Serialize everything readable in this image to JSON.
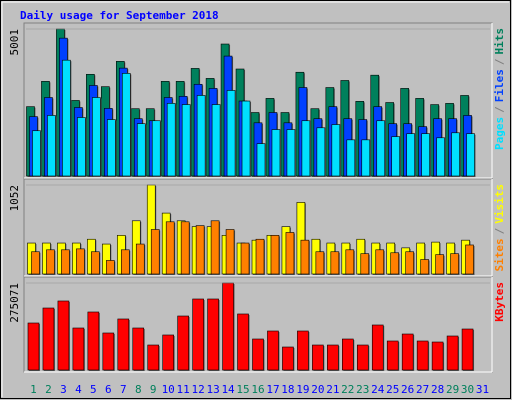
{
  "chart_data": [
    {
      "type": "bar",
      "title": "Daily usage for September 2018",
      "legend_separator": "/",
      "ylim": [
        0,
        5001
      ],
      "yticks": [
        5001
      ],
      "series": [
        {
          "name": "Hits",
          "color": "#00805c",
          "values": [
            2360,
            3220,
            5001,
            2570,
            3460,
            3040,
            3900,
            2290,
            2290,
            3220,
            3220,
            3660,
            3320,
            4490,
            3640,
            2160,
            2640,
            2160,
            3530,
            2290,
            3010,
            3250,
            2540,
            3430,
            2500,
            2980,
            2640,
            2430,
            2470,
            2740,
            null
          ]
        },
        {
          "name": "Files",
          "color": "#0040ff",
          "values": [
            2020,
            2670,
            4690,
            2330,
            3080,
            2300,
            3670,
            1950,
            1880,
            2670,
            2710,
            3120,
            2980,
            4080,
            2550,
            1810,
            2160,
            1810,
            3010,
            1950,
            2360,
            1950,
            1920,
            2360,
            1780,
            1780,
            1680,
            1950,
            1950,
            2060,
            null
          ]
        },
        {
          "name": "Pages",
          "color": "#00e0ff",
          "values": [
            1540,
            2060,
            3940,
            1990,
            2670,
            1920,
            3490,
            1780,
            1880,
            2470,
            2430,
            2740,
            2430,
            2910,
            2550,
            1100,
            1580,
            1580,
            1880,
            1640,
            1750,
            1230,
            1230,
            1880,
            1340,
            1440,
            1440,
            1300,
            1470,
            1440,
            null
          ]
        }
      ]
    },
    {
      "type": "bar",
      "legend_separator": "/",
      "ylim": [
        0,
        1052
      ],
      "yticks": [
        1052
      ],
      "series": [
        {
          "name": "Visits",
          "color": "#ffff00",
          "values": [
            366,
            366,
            366,
            366,
            411,
            354,
            457,
            629,
            1052,
            720,
            629,
            560,
            560,
            457,
            366,
            400,
            457,
            560,
            846,
            411,
            366,
            366,
            411,
            366,
            366,
            309,
            366,
            377,
            366,
            400,
            null
          ]
        },
        {
          "name": "Sites",
          "color": "#ff8000",
          "values": [
            263,
            286,
            286,
            297,
            263,
            160,
            286,
            354,
            526,
            617,
            617,
            572,
            629,
            526,
            366,
            411,
            457,
            491,
            400,
            263,
            263,
            286,
            240,
            286,
            251,
            263,
            171,
            229,
            240,
            343,
            null
          ]
        }
      ]
    },
    {
      "type": "bar",
      "ylim": [
        0,
        275071
      ],
      "yticks": [
        275071
      ],
      "categories": [
        "1",
        "2",
        "3",
        "4",
        "5",
        "6",
        "7",
        "8",
        "9",
        "10",
        "11",
        "12",
        "13",
        "14",
        "15",
        "16",
        "17",
        "18",
        "19",
        "20",
        "21",
        "22",
        "23",
        "24",
        "25",
        "26",
        "27",
        "28",
        "29",
        "30",
        "31"
      ],
      "category_colors": [
        "#00805c",
        "#00805c",
        "#0000ff",
        "#0000ff",
        "#0000ff",
        "#0000ff",
        "#0000ff",
        "#00805c",
        "#00805c",
        "#0000ff",
        "#0000ff",
        "#0000ff",
        "#0000ff",
        "#0000ff",
        "#00805c",
        "#00805c",
        "#0000ff",
        "#0000ff",
        "#0000ff",
        "#0000ff",
        "#0000ff",
        "#00805c",
        "#00805c",
        "#0000ff",
        "#0000ff",
        "#0000ff",
        "#0000ff",
        "#0000ff",
        "#00805c",
        "#00805c",
        "#0000ff"
      ],
      "series": [
        {
          "name": "KBytes",
          "color": "#ff0000",
          "values": [
            148600,
            196000,
            218200,
            132800,
            183400,
            117000,
            161300,
            132800,
            79000,
            110700,
            170700,
            224500,
            224500,
            275071,
            177100,
            98000,
            123300,
            72700,
            123300,
            79000,
            79000,
            98000,
            79000,
            142300,
            91700,
            113800,
            91700,
            88500,
            107500,
            129600,
            null
          ]
        }
      ]
    }
  ]
}
